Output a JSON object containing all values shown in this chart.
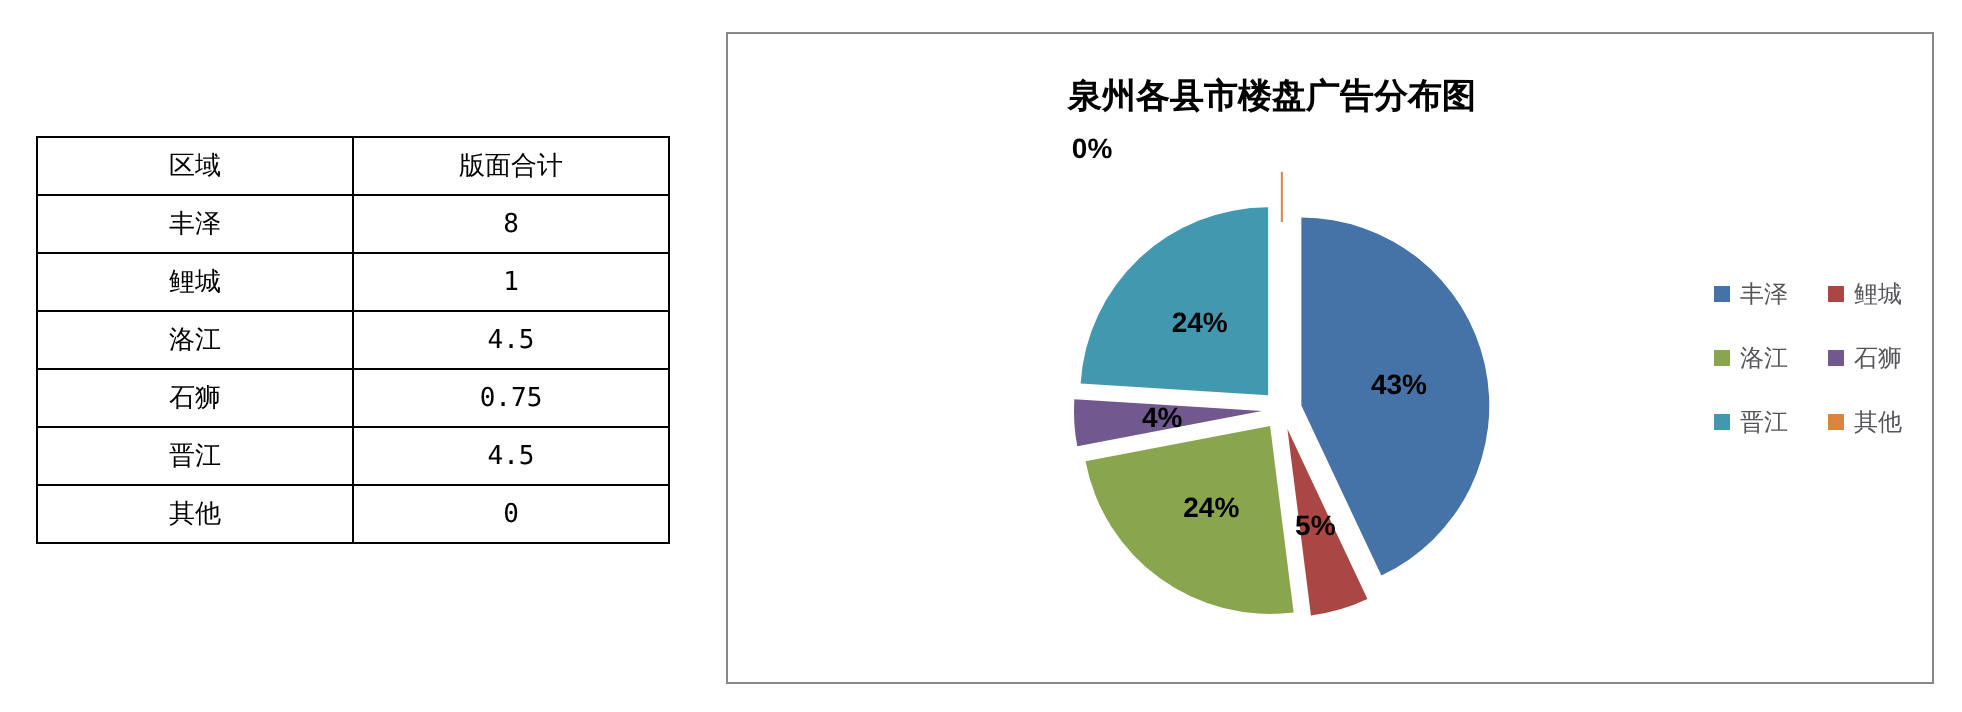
{
  "chart_data": [
    {
      "type": "other",
      "xlabel": "区域",
      "ylabel": "版面合计",
      "categories": [
        "丰泽",
        "鲤城",
        "洛江",
        "石狮",
        "晋江",
        "其他"
      ],
      "values": [
        8,
        1,
        4.5,
        0.75,
        4.5,
        0
      ],
      "data_labels": true
    },
    {
      "type": "pie",
      "title": "泉州各县市楼盘广告分布图",
      "categories": [
        "丰泽",
        "鲤城",
        "洛江",
        "石狮",
        "晋江",
        "其他"
      ],
      "values": [
        43,
        5,
        24,
        4,
        24,
        0
      ],
      "colors": [
        "#4572a7",
        "#aa4643",
        "#89a54e",
        "#71588f",
        "#4198af",
        "#db843d"
      ],
      "value_labels": [
        "43%",
        "5%",
        "24%",
        "4%",
        "24%",
        "0%"
      ],
      "legend": "right"
    }
  ]
}
